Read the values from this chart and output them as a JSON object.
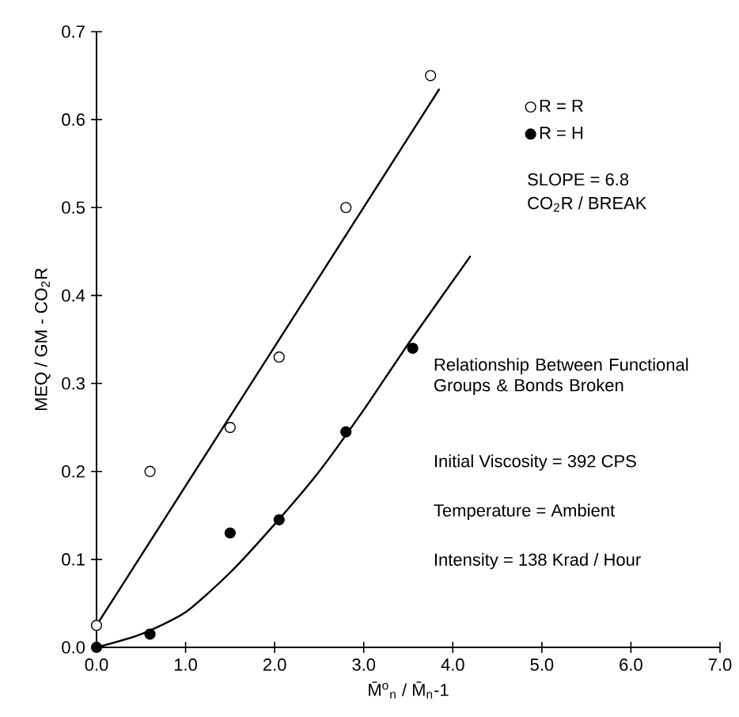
{
  "chart_data": {
    "type": "scatter",
    "xlabel": "M̄$^{o}$$_{n}$ / M̄$_{n}$-1",
    "ylabel": "MEQ / GM - CO$_{2}$R",
    "xlim": [
      0,
      7
    ],
    "ylim": [
      0,
      0.7
    ],
    "xticks": [
      {
        "value": 0,
        "label": "0.0"
      },
      {
        "value": 1,
        "label": "1.0"
      },
      {
        "value": 2,
        "label": "2.0"
      },
      {
        "value": 3,
        "label": "3.0"
      },
      {
        "value": 4,
        "label": "4.0"
      },
      {
        "value": 5,
        "label": "5.0"
      },
      {
        "value": 6,
        "label": "6.0"
      },
      {
        "value": 7,
        "label": "7.0"
      }
    ],
    "yticks": [
      {
        "value": 0,
        "label": "0.0"
      },
      0.1,
      0.2,
      0.3,
      0.4,
      0.5,
      0.6,
      0.7
    ],
    "legend": "top right",
    "grid": false,
    "series": [
      {
        "name": "R = R",
        "marker": "circle",
        "color": "#ffffff",
        "x": [
          0,
          0.6,
          1.5,
          2.05,
          2.8,
          3.75
        ],
        "values": [
          0.025,
          0.2,
          0.25,
          0.33,
          0.5,
          0.65
        ]
      },
      {
        "name": "R = H",
        "marker": "circle",
        "color": "#000000",
        "x": [
          0,
          0.6,
          1.5,
          2.05,
          2.8,
          3.55
        ],
        "values": [
          0,
          0.015,
          0.13,
          0.145,
          0.245,
          0.34
        ]
      },
      {
        "type": "line",
        "marker": "none",
        "color": "#000000",
        "x": [
          0,
          3.85
        ],
        "values": [
          0.025,
          0.635
        ]
      },
      {
        "type": "line",
        "marker": "none",
        "color": "#000000",
        "x": [
          0,
          0.5,
          1,
          1.5,
          2,
          2.5,
          3,
          3.5,
          4.2
        ],
        "values": [
          0,
          0.015,
          0.04,
          0.085,
          0.14,
          0.2,
          0.27,
          0.345,
          0.445
        ]
      }
    ],
    "annotations": [
      "SLOPE = 6.8",
      "CO$_{2}$R / BREAK",
      "Relationship Between Functional Groups & Bonds Broken",
      "Initial Viscosity = 392 CPS",
      "Temperature = Ambient",
      "Intensity = 138 Krad / Hour"
    ]
  }
}
